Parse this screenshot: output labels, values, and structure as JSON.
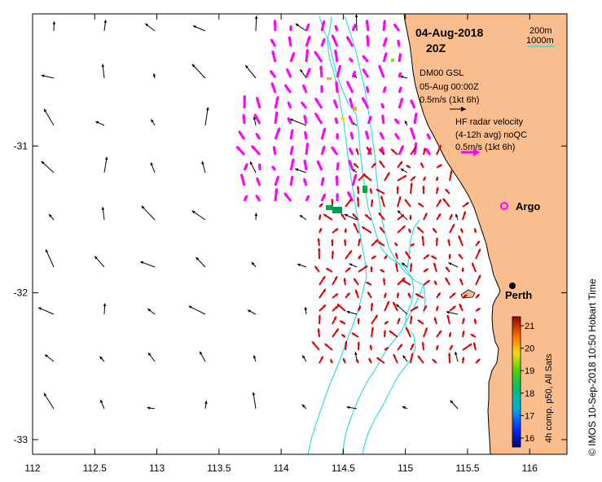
{
  "title": {
    "date": "04-Aug-2018",
    "time": "20Z"
  },
  "axes": {
    "x_ticks": [
      "112",
      "112.5",
      "113",
      "113.5",
      "114",
      "114.5",
      "115",
      "115.5",
      "116"
    ],
    "y_ticks": [
      "-31",
      "-32",
      "-33"
    ],
    "xlim": [
      112,
      116.3
    ],
    "ylim": [
      -33.1,
      -30.1
    ]
  },
  "isobath_legend": {
    "line1": "200m",
    "line2": "1000m",
    "color": "#33dddd"
  },
  "model_legend": {
    "name": "DM00 GSL",
    "date": "05-Aug 00:00Z",
    "scale": "0.5m/s (1kt 6h)"
  },
  "radar_legend": {
    "title": "HF radar velocity",
    "subtitle": "(4-12h avg) noQC",
    "scale": "0.5m/s (1kt 6h)",
    "color": "#ff00ff"
  },
  "argo": {
    "label": "Argo",
    "color": "#ff00ff"
  },
  "city": {
    "label": "Perth"
  },
  "colorbar": {
    "label": "4h comp. p50, All Sats",
    "ticks": [
      "21",
      "20",
      "19",
      "18",
      "17",
      "16"
    ],
    "range": [
      15.6,
      21.4
    ]
  },
  "credit": "© IMOS 10-Sep-2018 10:50 Hobart Time",
  "colors": {
    "land": "#f9bd8e",
    "model_arrow": "#000000",
    "radar_arrow": "#ff00ff",
    "sst_arrow": "#dd0000",
    "isobath": "#33dddd"
  }
}
